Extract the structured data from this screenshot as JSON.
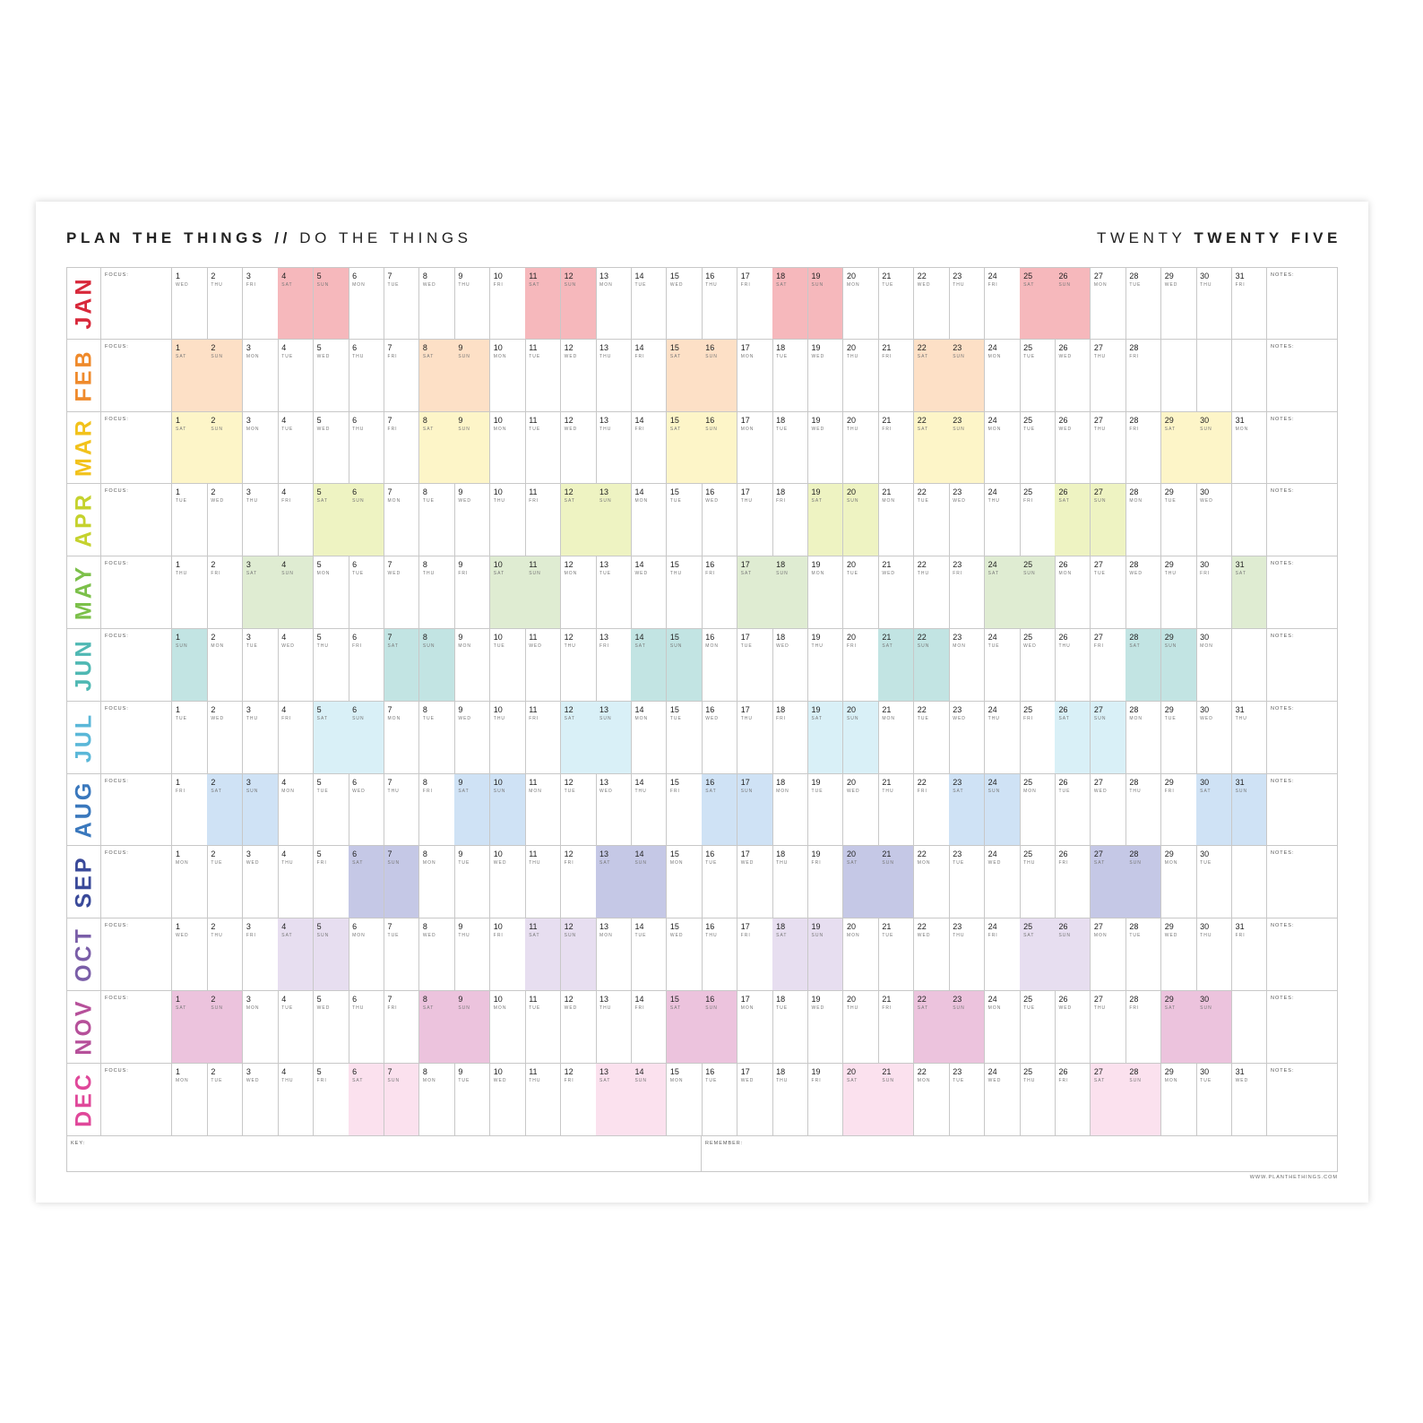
{
  "header": {
    "title_bold": "PLAN THE THINGS //",
    "title_light": "DO THE THINGS",
    "year_light": "TWENTY",
    "year_bold": "TWENTY FIVE"
  },
  "labels": {
    "focus": "FOCUS:",
    "notes": "NOTES:",
    "key": "KEY:",
    "remember": "REMEMBER:"
  },
  "weekday_labels": [
    "MON",
    "TUE",
    "WED",
    "THU",
    "FRI",
    "SAT",
    "SUN"
  ],
  "months": [
    {
      "name": "JAN",
      "days": 31,
      "first_weekday": "WED",
      "color": "#d8283a",
      "weekend_fill": "#f6b8bc"
    },
    {
      "name": "FEB",
      "days": 28,
      "first_weekday": "SAT",
      "color": "#ef8a2b",
      "weekend_fill": "#fde0c6"
    },
    {
      "name": "MAR",
      "days": 31,
      "first_weekday": "SAT",
      "color": "#f2c21b",
      "weekend_fill": "#fdf5c8"
    },
    {
      "name": "APR",
      "days": 30,
      "first_weekday": "TUE",
      "color": "#c5d22e",
      "weekend_fill": "#eef3c2"
    },
    {
      "name": "MAY",
      "days": 31,
      "first_weekday": "THU",
      "color": "#7cc04a",
      "weekend_fill": "#dfecd2"
    },
    {
      "name": "JUN",
      "days": 30,
      "first_weekday": "SUN",
      "color": "#4fb8b3",
      "weekend_fill": "#c2e4e3"
    },
    {
      "name": "JUL",
      "days": 31,
      "first_weekday": "TUE",
      "color": "#5ab7d8",
      "weekend_fill": "#d9f0f7"
    },
    {
      "name": "AUG",
      "days": 31,
      "first_weekday": "FRI",
      "color": "#3a78bd",
      "weekend_fill": "#cfe2f5"
    },
    {
      "name": "SEP",
      "days": 30,
      "first_weekday": "MON",
      "color": "#3a4a9a",
      "weekend_fill": "#c5c8e6"
    },
    {
      "name": "OCT",
      "days": 31,
      "first_weekday": "WED",
      "color": "#7a5ea8",
      "weekend_fill": "#e7def0"
    },
    {
      "name": "NOV",
      "days": 30,
      "first_weekday": "SAT",
      "color": "#b6509a",
      "weekend_fill": "#ecc3dd"
    },
    {
      "name": "DEC",
      "days": 31,
      "first_weekday": "MON",
      "color": "#e0489a",
      "weekend_fill": "#fbe1ee"
    }
  ],
  "footer": {
    "website": "WWW.PLANTHETHINGS.COM"
  }
}
